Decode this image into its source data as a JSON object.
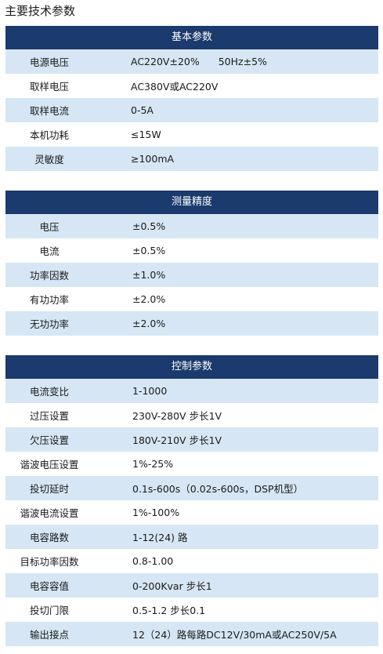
{
  "page_title": "主要技术参数",
  "sections": [
    {
      "title": "基本参数",
      "rows": [
        {
          "label": "电源电压",
          "value": "AC220V±20%",
          "value2": "50Hz±5%"
        },
        {
          "label": "取样电压",
          "value": "AC380V或AC220V"
        },
        {
          "label": "取样电流",
          "value": "0-5A"
        },
        {
          "label": "本机功耗",
          "value": "≤15W"
        },
        {
          "label": "灵敏度",
          "value": "≥100mA"
        }
      ]
    },
    {
      "title": "测量精度",
      "rows": [
        {
          "label": "电压",
          "value": "±0.5%"
        },
        {
          "label": "电流",
          "value": "±0.5%"
        },
        {
          "label": "功率因数",
          "value": "±1.0%"
        },
        {
          "label": "有功功率",
          "value": "±2.0%"
        },
        {
          "label": "无功功率",
          "value": "±2.0%"
        }
      ]
    },
    {
      "title": "控制参数",
      "rows": [
        {
          "label": "电流变比",
          "value": "1-1000"
        },
        {
          "label": "过压设置",
          "value": "230V-280V 步长1V"
        },
        {
          "label": "欠压设置",
          "value": "180V-210V  步长1V"
        },
        {
          "label": "谐波电压设置",
          "value": "1%-25%"
        },
        {
          "label": "投切延时",
          "value": "0.1s-600s（0.02s-600s，DSP机型）"
        },
        {
          "label": "谐波电流设置",
          "value": "1%-100%"
        },
        {
          "label": "电容路数",
          "value": "1-12(24) 路"
        },
        {
          "label": "目标功率因数",
          "value": "0.8-1.00"
        },
        {
          "label": "电容容值",
          "value": "0-200Kvar  步长1"
        },
        {
          "label": "投切门限",
          "value": "0.5-1.2  步长0.1"
        },
        {
          "label": "输出接点",
          "value": "12（24）路每路DC12V/30mA或AC250V/5A"
        }
      ]
    }
  ]
}
